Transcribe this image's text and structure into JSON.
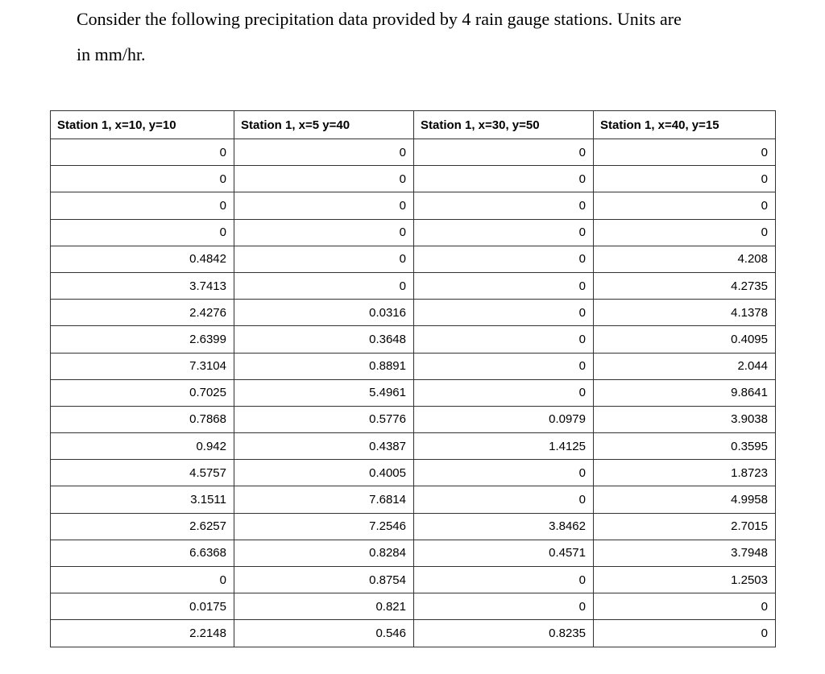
{
  "document": {
    "intro_line1": "Consider the following precipitation data provided by 4 rain gauge stations. Units are",
    "intro_line2": "in mm/hr."
  },
  "table": {
    "columns": [
      {
        "header": "Station 1, x=10, y=10"
      },
      {
        "header": "Station 1, x=5 y=40"
      },
      {
        "header": "Station 1, x=30, y=50"
      },
      {
        "header": "Station 1, x=40, y=15"
      }
    ],
    "rows": [
      [
        "0",
        "0",
        "0",
        "0"
      ],
      [
        "0",
        "0",
        "0",
        "0"
      ],
      [
        "0",
        "0",
        "0",
        "0"
      ],
      [
        "0",
        "0",
        "0",
        "0"
      ],
      [
        "0.4842",
        "0",
        "0",
        "4.208"
      ],
      [
        "3.7413",
        "0",
        "0",
        "4.2735"
      ],
      [
        "2.4276",
        "0.0316",
        "0",
        "4.1378"
      ],
      [
        "2.6399",
        "0.3648",
        "0",
        "0.4095"
      ],
      [
        "7.3104",
        "0.8891",
        "0",
        "2.044"
      ],
      [
        "0.7025",
        "5.4961",
        "0",
        "9.8641"
      ],
      [
        "0.7868",
        "0.5776",
        "0.0979",
        "3.9038"
      ],
      [
        "0.942",
        "0.4387",
        "1.4125",
        "0.3595"
      ],
      [
        "4.5757",
        "0.4005",
        "0",
        "1.8723"
      ],
      [
        "3.1511",
        "7.6814",
        "0",
        "4.9958"
      ],
      [
        "2.6257",
        "7.2546",
        "3.8462",
        "2.7015"
      ],
      [
        "6.6368",
        "0.8284",
        "0.4571",
        "3.7948"
      ],
      [
        "0",
        "0.8754",
        "0",
        "1.2503"
      ],
      [
        "0.0175",
        "0.821",
        "0",
        "0"
      ],
      [
        "2.2148",
        "0.546",
        "0.8235",
        "0"
      ]
    ]
  },
  "colors": {
    "background": "#ffffff",
    "text": "#000000",
    "table_border": "#333333"
  }
}
